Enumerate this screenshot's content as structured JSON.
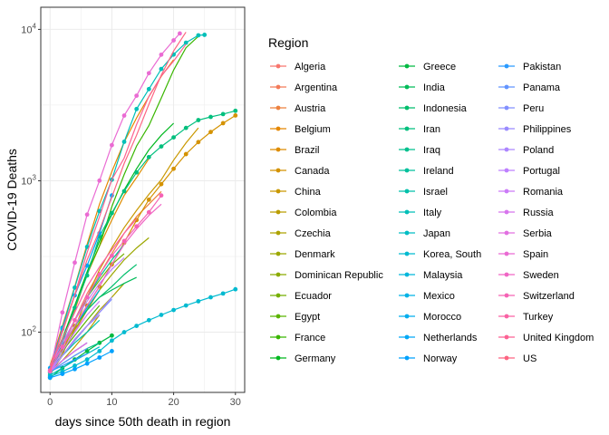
{
  "chart_data": {
    "type": "line",
    "xlabel": "days since 50th death in region",
    "ylabel": "COVID-19 Deaths",
    "x_scale": "linear",
    "y_scale": "log10",
    "xlim": [
      -1.5,
      31.5
    ],
    "ylim": [
      40,
      14000
    ],
    "x_ticks": [
      0,
      10,
      20,
      30
    ],
    "y_ticks": [
      {
        "value": 100,
        "base": "10",
        "exp": "2"
      },
      {
        "value": 1000,
        "base": "10",
        "exp": "3"
      },
      {
        "value": 10000,
        "base": "10",
        "exp": "4"
      }
    ],
    "grid": true,
    "legend": {
      "title": "Region",
      "position": "right",
      "columns": 3
    },
    "series": [
      {
        "name": "Algeria",
        "color": "#F8766D",
        "markers": false,
        "x": [
          0,
          2,
          4,
          6,
          8
        ],
        "y": [
          58,
          85,
          120,
          180,
          250
        ]
      },
      {
        "name": "Argentina",
        "color": "#F37B59",
        "markers": false,
        "x": [
          0,
          2,
          4,
          6,
          8
        ],
        "y": [
          55,
          75,
          100,
          140,
          190
        ]
      },
      {
        "name": "Austria",
        "color": "#ED813E",
        "markers": false,
        "x": [
          0,
          2,
          4,
          6,
          8,
          10,
          12,
          14,
          16,
          18
        ],
        "y": [
          58,
          80,
          120,
          170,
          240,
          330,
          450,
          580,
          700,
          850
        ]
      },
      {
        "name": "Belgium",
        "color": "#E58700",
        "markers": false,
        "x": [
          0,
          2,
          4,
          6,
          8,
          10,
          12,
          14,
          16,
          18,
          20
        ],
        "y": [
          60,
          110,
          200,
          380,
          700,
          1150,
          1800,
          2600,
          3600,
          4900,
          6300
        ]
      },
      {
        "name": "Brazil",
        "color": "#DE8C00",
        "markers": false,
        "x": [
          0,
          2,
          4,
          6,
          8,
          10,
          12,
          14,
          16
        ],
        "y": [
          55,
          90,
          140,
          240,
          370,
          550,
          800,
          1050,
          1400
        ]
      },
      {
        "name": "Canada",
        "color": "#D49200",
        "markers": true,
        "x": [
          0,
          2,
          4,
          6,
          8,
          10,
          12,
          14,
          16,
          18,
          20,
          22,
          24,
          26,
          28,
          30
        ],
        "y": [
          55,
          75,
          110,
          150,
          200,
          280,
          390,
          550,
          750,
          950,
          1200,
          1500,
          1800,
          2100,
          2400,
          2700
        ]
      },
      {
        "name": "China",
        "color": "#C99800",
        "markers": false,
        "x": [
          0,
          2,
          4,
          6,
          8,
          10,
          12,
          14,
          16,
          18,
          20,
          22,
          24
        ],
        "y": [
          56,
          80,
          106,
          170,
          259,
          361,
          490,
          638,
          813,
          1016,
          1368,
          1775,
          2236
        ]
      },
      {
        "name": "Colombia",
        "color": "#BB9D00",
        "markers": false,
        "x": [
          0,
          2,
          4,
          6,
          8
        ],
        "y": [
          54,
          65,
          80,
          100,
          130
        ]
      },
      {
        "name": "Czechia",
        "color": "#ADA200",
        "markers": false,
        "x": [
          0,
          2,
          4,
          6,
          8,
          10,
          12
        ],
        "y": [
          53,
          70,
          88,
          110,
          140,
          170,
          210
        ]
      },
      {
        "name": "Denmark",
        "color": "#9CA700",
        "markers": false,
        "x": [
          0,
          2,
          4,
          6,
          8,
          10,
          12,
          14,
          16
        ],
        "y": [
          52,
          72,
          104,
          140,
          190,
          240,
          300,
          360,
          420
        ]
      },
      {
        "name": "Dominican Republic",
        "color": "#8BAB00",
        "markers": false,
        "x": [
          0,
          2,
          4,
          6,
          8
        ],
        "y": [
          55,
          70,
          90,
          110,
          130
        ]
      },
      {
        "name": "Ecuador",
        "color": "#75AF00",
        "markers": false,
        "x": [
          0,
          2,
          4,
          6,
          8,
          10,
          12
        ],
        "y": [
          55,
          80,
          120,
          170,
          220,
          280,
          330
        ]
      },
      {
        "name": "Egypt",
        "color": "#5BB300",
        "markers": false,
        "x": [
          0,
          2,
          4,
          6,
          8
        ],
        "y": [
          56,
          75,
          95,
          120,
          150
        ]
      },
      {
        "name": "France",
        "color": "#39B600",
        "markers": false,
        "x": [
          0,
          2,
          4,
          6,
          8,
          10,
          12,
          14,
          16,
          18,
          20,
          22,
          24
        ],
        "y": [
          60,
          91,
          148,
          244,
          372,
          674,
          1100,
          1696,
          2314,
          3523,
          5387,
          7560,
          9000
        ]
      },
      {
        "name": "Germany",
        "color": "#00B81F",
        "markers": false,
        "x": [
          0,
          2,
          4,
          6,
          8,
          10,
          12,
          14,
          16,
          18,
          20
        ],
        "y": [
          55,
          90,
          150,
          250,
          400,
          600,
          870,
          1200,
          1600,
          2000,
          2400
        ]
      },
      {
        "name": "Greece",
        "color": "#00BA42",
        "markers": true,
        "x": [
          0,
          2,
          4,
          6,
          8,
          10
        ],
        "y": [
          50,
          58,
          66,
          75,
          85,
          95
        ]
      },
      {
        "name": "India",
        "color": "#00BC59",
        "markers": false,
        "x": [
          0,
          2,
          4,
          6,
          8,
          10,
          12,
          14
        ],
        "y": [
          60,
          80,
          110,
          140,
          170,
          190,
          210,
          230
        ]
      },
      {
        "name": "Indonesia",
        "color": "#00BE6C",
        "markers": false,
        "x": [
          0,
          2,
          4,
          6,
          8,
          10,
          12,
          14
        ],
        "y": [
          60,
          80,
          110,
          140,
          170,
          200,
          240,
          280
        ]
      },
      {
        "name": "Iran",
        "color": "#00BF7D",
        "markers": true,
        "x": [
          0,
          2,
          4,
          6,
          8,
          10,
          12,
          14,
          16,
          18,
          20,
          22,
          24,
          26,
          28,
          30
        ],
        "y": [
          54,
          85,
          145,
          237,
          429,
          611,
          853,
          1135,
          1433,
          1685,
          1934,
          2234,
          2517,
          2640,
          2757,
          2898
        ]
      },
      {
        "name": "Iraq",
        "color": "#00C08D",
        "markers": false,
        "x": [
          0,
          2,
          4,
          6,
          8
        ],
        "y": [
          54,
          62,
          70,
          78,
          85
        ]
      },
      {
        "name": "Ireland",
        "color": "#00C09C",
        "markers": false,
        "x": [
          0,
          2,
          4,
          6,
          8,
          10,
          12
        ],
        "y": [
          54,
          80,
          120,
          170,
          230,
          300,
          380
        ]
      },
      {
        "name": "Israel",
        "color": "#00C0AA",
        "markers": false,
        "x": [
          0,
          2,
          4,
          6,
          8
        ],
        "y": [
          57,
          70,
          85,
          100,
          120
        ]
      },
      {
        "name": "Italy",
        "color": "#00BFB8",
        "markers": true,
        "x": [
          0,
          2,
          4,
          6,
          8,
          10,
          12,
          14,
          16,
          18,
          20,
          22,
          24,
          25
        ],
        "y": [
          52,
          107,
          197,
          366,
          631,
          1016,
          1809,
          2978,
          4032,
          5476,
          6820,
          8165,
          9134,
          9200
        ]
      },
      {
        "name": "Japan",
        "color": "#00BDC4",
        "markers": false,
        "x": [
          0,
          2,
          4,
          6,
          8
        ],
        "y": [
          52,
          58,
          65,
          72,
          80
        ]
      },
      {
        "name": "Korea, South",
        "color": "#00BAD0",
        "markers": true,
        "x": [
          0,
          2,
          4,
          6,
          8,
          10,
          12,
          14,
          16,
          18,
          20,
          22,
          24,
          26,
          28,
          30
        ],
        "y": [
          51,
          55,
          60,
          66,
          75,
          88,
          100,
          110,
          120,
          130,
          140,
          150,
          160,
          170,
          180,
          192
        ]
      },
      {
        "name": "Malaysia",
        "color": "#00B6DB",
        "markers": false,
        "x": [
          0,
          2,
          4,
          6
        ],
        "y": [
          55,
          65,
          75,
          85
        ]
      },
      {
        "name": "Mexico",
        "color": "#00B2E5",
        "markers": false,
        "x": [
          0,
          2,
          4,
          6,
          8
        ],
        "y": [
          55,
          80,
          110,
          145,
          190
        ]
      },
      {
        "name": "Morocco",
        "color": "#00ADEE",
        "markers": false,
        "x": [
          0,
          2,
          4,
          6
        ],
        "y": [
          55,
          65,
          75,
          85
        ]
      },
      {
        "name": "Netherlands",
        "color": "#00A8F6",
        "markers": true,
        "x": [
          0,
          2,
          4,
          6,
          8,
          10
        ],
        "y": [
          58,
          105,
          175,
          275,
          450,
          800
        ]
      },
      {
        "name": "Norway",
        "color": "#00A1FD",
        "markers": true,
        "x": [
          0,
          2,
          4,
          6,
          8,
          10
        ],
        "y": [
          50,
          53,
          57,
          62,
          68,
          75
        ]
      },
      {
        "name": "Pakistan",
        "color": "#2A9AFF",
        "markers": false,
        "x": [
          0,
          2,
          4,
          6
        ],
        "y": [
          55,
          60,
          66,
          72
        ]
      },
      {
        "name": "Panama",
        "color": "#6294FF",
        "markers": false,
        "x": [
          0,
          2,
          4,
          6
        ],
        "y": [
          55,
          62,
          70,
          78
        ]
      },
      {
        "name": "Peru",
        "color": "#8290FF",
        "markers": false,
        "x": [
          0,
          2,
          4,
          6,
          8,
          10
        ],
        "y": [
          55,
          70,
          88,
          110,
          135,
          165
        ]
      },
      {
        "name": "Philippines",
        "color": "#9A8BFF",
        "markers": false,
        "x": [
          0,
          2,
          4,
          6,
          8,
          10
        ],
        "y": [
          55,
          70,
          90,
          110,
          135,
          170
        ]
      },
      {
        "name": "Poland",
        "color": "#AD86FF",
        "markers": false,
        "x": [
          0,
          2,
          4,
          6,
          8
        ],
        "y": [
          55,
          70,
          90,
          110,
          130
        ]
      },
      {
        "name": "Portugal",
        "color": "#BE80FF",
        "markers": false,
        "x": [
          0,
          2,
          4,
          6,
          8,
          10,
          12
        ],
        "y": [
          60,
          85,
          120,
          160,
          210,
          260,
          310
        ]
      },
      {
        "name": "Romania",
        "color": "#CC7BF8",
        "markers": false,
        "x": [
          0,
          2,
          4,
          6,
          8
        ],
        "y": [
          55,
          75,
          100,
          130,
          160
        ]
      },
      {
        "name": "Russia",
        "color": "#D875ED",
        "markers": false,
        "x": [
          0,
          2,
          4,
          6
        ],
        "y": [
          55,
          65,
          75,
          85
        ]
      },
      {
        "name": "Serbia",
        "color": "#E270E1",
        "markers": false,
        "x": [
          0,
          2,
          4,
          6
        ],
        "y": [
          55,
          65,
          75,
          85
        ]
      },
      {
        "name": "Spain",
        "color": "#EA6BD3",
        "markers": true,
        "x": [
          0,
          2,
          4,
          6,
          8,
          10,
          12,
          14,
          16,
          18,
          20,
          21
        ],
        "y": [
          55,
          135,
          288,
          598,
          1002,
          1720,
          2696,
          3647,
          5138,
          6803,
          8464,
          9400
        ]
      },
      {
        "name": "Sweden",
        "color": "#F066C5",
        "markers": false,
        "x": [
          0,
          2,
          4,
          6,
          8,
          10,
          12,
          14,
          16,
          18
        ],
        "y": [
          60,
          80,
          110,
          150,
          200,
          280,
          380,
          480,
          590,
          700
        ]
      },
      {
        "name": "Switzerland",
        "color": "#F563B5",
        "markers": true,
        "x": [
          0,
          2,
          4,
          6,
          8,
          10,
          12,
          14,
          16,
          18
        ],
        "y": [
          56,
          80,
          120,
          170,
          240,
          320,
          400,
          500,
          620,
          800
        ]
      },
      {
        "name": "Turkey",
        "color": "#F962A4",
        "markers": false,
        "x": [
          0,
          2,
          4,
          6,
          8,
          10,
          12,
          14
        ],
        "y": [
          60,
          90,
          135,
          200,
          270,
          350,
          450,
          560
        ]
      },
      {
        "name": "United Kingdom",
        "color": "#FC6293",
        "markers": false,
        "x": [
          0,
          2,
          4,
          6,
          8,
          10,
          12,
          14,
          16,
          18,
          20,
          22
        ],
        "y": [
          55,
          103,
          177,
          335,
          578,
          1019,
          1411,
          2352,
          3605,
          4934,
          6171,
          7978
        ]
      },
      {
        "name": "US",
        "color": "#FD6582",
        "markers": false,
        "x": [
          0,
          2,
          4,
          6,
          8,
          10,
          12,
          14,
          16,
          18,
          20,
          22
        ],
        "y": [
          57,
          100,
          175,
          300,
          470,
          780,
          1300,
          2000,
          3200,
          5000,
          7200,
          9600
        ]
      }
    ]
  }
}
